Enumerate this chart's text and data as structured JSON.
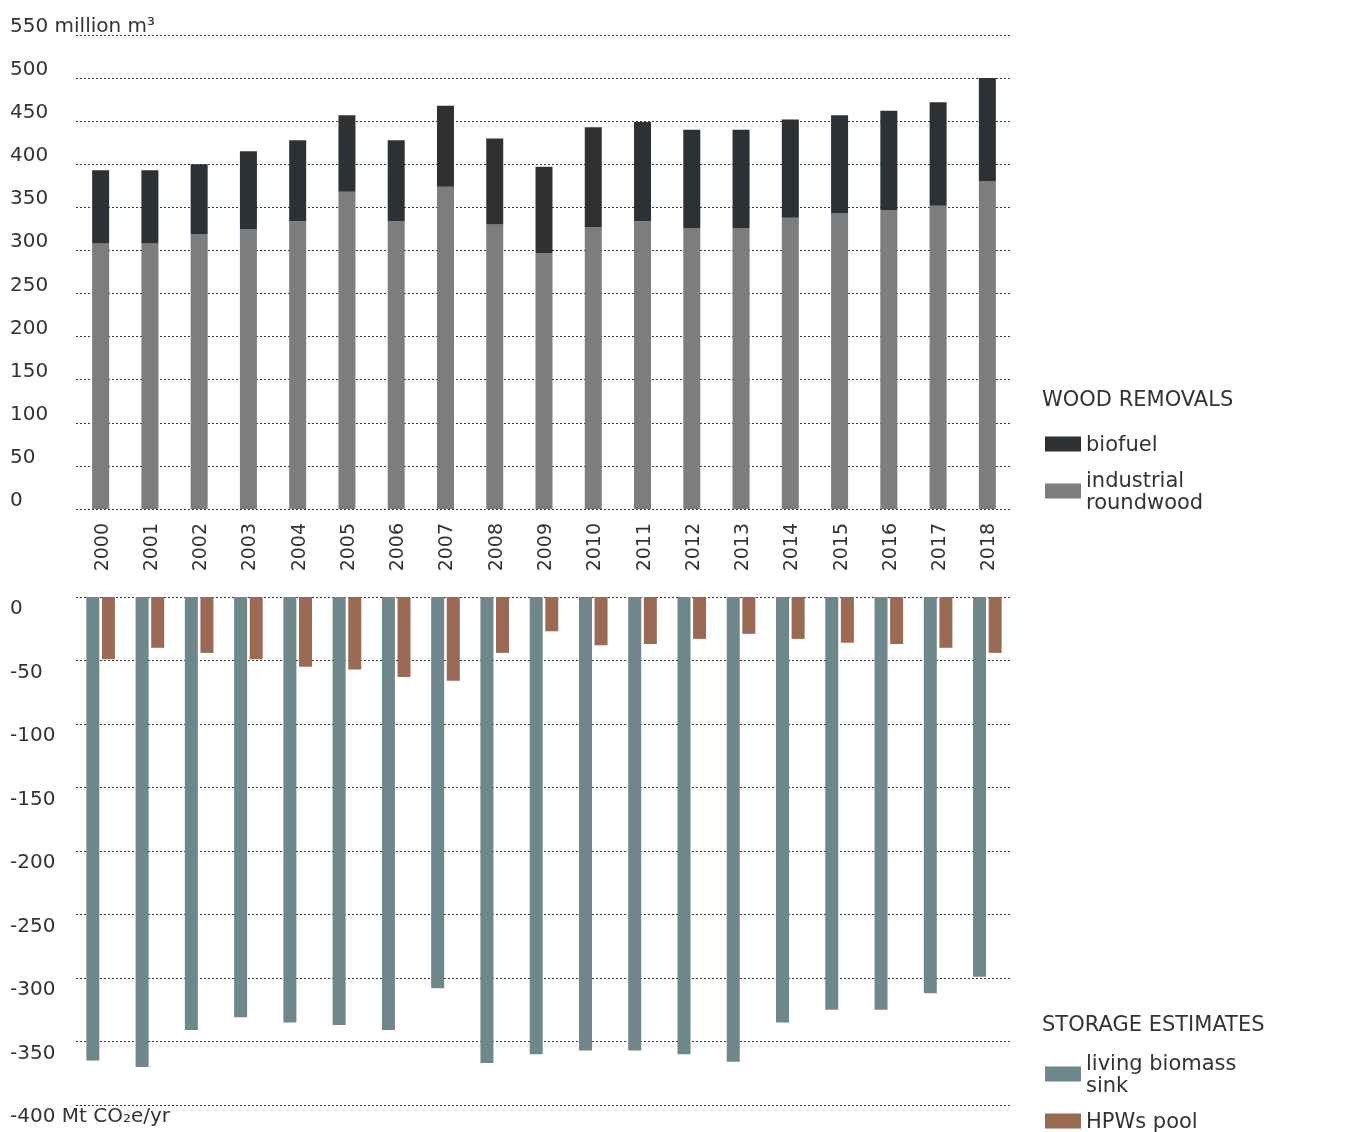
{
  "chart_data": [
    {
      "type": "bar",
      "stacked": true,
      "categories": [
        "2000",
        "2001",
        "2002",
        "2003",
        "2004",
        "2005",
        "2006",
        "2007",
        "2008",
        "2009",
        "2010",
        "2011",
        "2012",
        "2013",
        "2014",
        "2015",
        "2016",
        "2017",
        "2018"
      ],
      "series": [
        {
          "name": "industrial roundwood",
          "color": "#7b7d7e",
          "values": [
            308,
            308,
            319,
            325,
            334,
            368,
            334,
            374,
            330,
            297,
            327,
            334,
            326,
            326,
            338,
            343,
            347,
            352,
            380
          ]
        },
        {
          "name": "biofuel",
          "color": "#2e3133",
          "values": [
            85,
            85,
            81,
            90,
            94,
            89,
            94,
            94,
            100,
            100,
            116,
            115,
            114,
            114,
            114,
            114,
            115,
            120,
            120
          ]
        }
      ],
      "ylim": [
        0,
        550
      ],
      "yticks": [
        0,
        50,
        100,
        150,
        200,
        250,
        300,
        350,
        400,
        450,
        500,
        {
          "value": 550,
          "label": "550 million m³"
        }
      ],
      "grid": "y",
      "legend": "right",
      "legend_title": "WOOD REMOVALS"
    },
    {
      "type": "bar",
      "categories": [
        "2000",
        "2001",
        "2002",
        "2003",
        "2004",
        "2005",
        "2006",
        "2007",
        "2008",
        "2009",
        "2010",
        "2011",
        "2012",
        "2013",
        "2014",
        "2015",
        "2016",
        "2017",
        "2018"
      ],
      "series": [
        {
          "name": "living biomass sink",
          "color": "#6f878a",
          "values": [
            -365,
            -370,
            -341,
            -331,
            -335,
            -337,
            -341,
            -308,
            -367,
            -360,
            -357,
            -357,
            -360,
            -366,
            -335,
            -325,
            -325,
            -312,
            -299
          ]
        },
        {
          "name": "HPWs pool",
          "color": "#9a6a55",
          "values": [
            -49,
            -40,
            -44,
            -49,
            -55,
            -57,
            -63,
            -66,
            -44,
            -27,
            -38,
            -37,
            -33,
            -29,
            -33,
            -36,
            -37,
            -40,
            -44
          ]
        }
      ],
      "ylim": [
        -400,
        0
      ],
      "yticks": [
        {
          "value": -400,
          "label": "-400 Mt CO₂e/yr"
        },
        -350,
        -300,
        -250,
        -200,
        -150,
        -100,
        -50,
        0
      ],
      "grid": "y",
      "legend": "right",
      "legend_title": "STORAGE ESTIMATES",
      "tick_labels": "y"
    }
  ]
}
